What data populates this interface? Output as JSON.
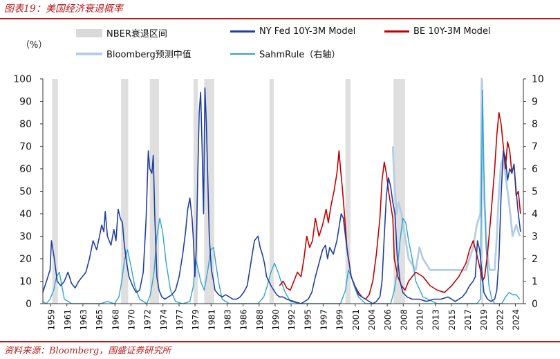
{
  "header": {
    "title": "图表19：美国经济衰退概率"
  },
  "footer": {
    "source": "资料来源：Bloomberg，国盛证券研究所"
  },
  "chart_data": {
    "type": "line",
    "unit_label": "（%）",
    "legend_position": "top",
    "grid": false,
    "x_tick_labels": [
      "1959",
      "1961",
      "1963",
      "1965",
      "1968",
      "1970",
      "1972",
      "1974",
      "1977",
      "1979",
      "1981",
      "1983",
      "1986",
      "1988",
      "1990",
      "1992",
      "1995",
      "1997",
      "1999",
      "2001",
      "2004",
      "2006",
      "2008",
      "2010",
      "2013",
      "2015",
      "2017",
      "2019",
      "2022",
      "2024"
    ],
    "xlim": [
      1959.0,
      2026.0
    ],
    "ylim_left": [
      0,
      100
    ],
    "yticks_left": [
      "0",
      "10",
      "20",
      "30",
      "40",
      "50",
      "60",
      "70",
      "80",
      "90",
      "100"
    ],
    "ylim_right": [
      0,
      10
    ],
    "yticks_right": [
      "0",
      "1",
      "2",
      "3",
      "4",
      "5",
      "6",
      "7",
      "8",
      "9",
      "10"
    ],
    "recessions": [
      [
        1960.3,
        1961.1
      ],
      [
        1969.9,
        1970.9
      ],
      [
        1973.9,
        1975.2
      ],
      [
        1980.0,
        1980.6
      ],
      [
        1981.5,
        1982.9
      ],
      [
        1990.6,
        1991.2
      ],
      [
        2001.2,
        2001.9
      ],
      [
        2007.9,
        2009.5
      ],
      [
        2020.1,
        2020.4
      ]
    ],
    "colors": {
      "recession": "#d9d9d9",
      "ny_fed": "#1f3fa0",
      "be": "#c00000",
      "bloomberg": "#b4cde6",
      "sahm": "#2ea3cf",
      "accent": "#b71c1c"
    },
    "series": [
      {
        "name": "NBER衰退区间",
        "axis": "left",
        "style": "band"
      },
      {
        "name": "NY Fed 10Y-3M Model",
        "axis": "left",
        "x": [
          1959.0,
          1959.5,
          1960.0,
          1960.2,
          1960.6,
          1961.0,
          1961.5,
          1962.0,
          1962.5,
          1963.0,
          1963.5,
          1964.0,
          1964.5,
          1965.0,
          1965.5,
          1966.0,
          1966.5,
          1966.9,
          1967.2,
          1967.5,
          1967.7,
          1968.0,
          1968.5,
          1968.9,
          1969.2,
          1969.5,
          1969.8,
          1970.1,
          1970.3,
          1970.6,
          1971.0,
          1971.5,
          1972.0,
          1972.5,
          1973.0,
          1973.4,
          1973.7,
          1973.9,
          1974.2,
          1974.4,
          1974.6,
          1974.9,
          1975.2,
          1975.6,
          1976.0,
          1976.5,
          1977.0,
          1977.5,
          1978.0,
          1978.5,
          1978.9,
          1979.2,
          1979.5,
          1979.8,
          1980.0,
          1980.2,
          1980.4,
          1980.6,
          1980.8,
          1981.0,
          1981.2,
          1981.4,
          1981.6,
          1981.8,
          1982.0,
          1982.2,
          1982.5,
          1982.8,
          1983.0,
          1983.5,
          1984.0,
          1984.5,
          1985.0,
          1985.5,
          1986.0,
          1986.5,
          1987.0,
          1987.5,
          1988.0,
          1988.5,
          1989.0,
          1989.3,
          1989.6,
          1989.9,
          1990.2,
          1990.5,
          1990.8,
          1991.2,
          1991.6,
          1992.0,
          1992.5,
          1993.0,
          1994.0,
          1995.0,
          1995.5,
          1996.0,
          1996.5,
          1997.0,
          1997.5,
          1998.0,
          1998.4,
          1998.7,
          1999.0,
          1999.5,
          2000.0,
          2000.3,
          2000.6,
          2000.9,
          2001.2,
          2001.5,
          2002.0,
          2002.5,
          2003.0,
          2004.0,
          2005.0,
          2005.5,
          2006.0,
          2006.3,
          2006.6,
          2006.9,
          2007.2,
          2007.5,
          2007.8,
          2008.1,
          2008.4,
          2008.8,
          2009.2,
          2009.8,
          2010.5,
          2011.5,
          2012.5,
          2013.5,
          2014.5,
          2015.5,
          2016.5,
          2017.0,
          2017.5,
          2018.0,
          2018.5,
          2019.0,
          2019.3,
          2019.6,
          2019.9,
          2020.2,
          2020.5,
          2021.0,
          2021.5,
          2022.0,
          2022.3,
          2022.6,
          2022.9,
          2023.2,
          2023.5,
          2023.8,
          2024.1,
          2024.4,
          2024.7,
          2025.0,
          2025.3,
          2025.6
        ],
        "values": [
          5,
          10,
          15,
          28,
          20,
          10,
          8,
          10,
          14,
          9,
          7,
          10,
          12,
          14,
          20,
          28,
          24,
          30,
          35,
          32,
          41,
          30,
          26,
          33,
          28,
          42,
          38,
          36,
          28,
          20,
          12,
          8,
          5,
          6,
          14,
          38,
          68,
          60,
          58,
          66,
          40,
          12,
          6,
          3,
          2,
          3,
          4,
          6,
          12,
          22,
          32,
          42,
          47,
          38,
          28,
          12,
          25,
          58,
          85,
          94,
          70,
          40,
          96,
          80,
          55,
          30,
          15,
          10,
          6,
          4,
          3,
          4,
          3,
          2,
          2,
          3,
          5,
          8,
          18,
          28,
          30,
          25,
          22,
          18,
          12,
          10,
          8,
          6,
          4,
          3,
          3,
          2,
          1,
          0,
          1,
          2,
          5,
          12,
          18,
          24,
          26,
          20,
          25,
          22,
          28,
          34,
          40,
          38,
          30,
          22,
          12,
          8,
          4,
          2,
          0,
          1,
          3,
          10,
          30,
          48,
          56,
          52,
          45,
          40,
          22,
          10,
          5,
          3,
          2,
          2,
          1,
          2,
          2,
          3,
          1,
          2,
          3,
          5,
          8,
          10,
          12,
          28,
          24,
          15,
          5,
          2,
          1,
          2,
          6,
          20,
          48,
          68,
          65,
          55,
          60,
          58,
          62,
          50,
          40,
          32
        ]
      },
      {
        "name": "BE 10Y-3M Model",
        "axis": "left",
        "x": [
          1992.0,
          1992.5,
          1993.0,
          1993.5,
          1994.0,
          1994.5,
          1995.0,
          1995.4,
          1995.8,
          1996.2,
          1996.6,
          1997.0,
          1997.5,
          1998.0,
          1998.5,
          1998.8,
          1999.2,
          1999.6,
          2000.0,
          2000.3,
          2000.5,
          2000.8,
          2001.1,
          2001.4,
          2002.0,
          2002.5,
          2003.0,
          2003.5,
          2004.0,
          2004.5,
          2005.0,
          2005.5,
          2006.0,
          2006.3,
          2006.6,
          2006.9,
          2007.2,
          2007.5,
          2007.8,
          2008.0,
          2008.5,
          2009.0,
          2009.5,
          2010.0,
          2011.0,
          2012.0,
          2013.0,
          2014.0,
          2015.0,
          2016.0,
          2017.0,
          2017.5,
          2018.0,
          2018.5,
          2019.0,
          2019.5,
          2020.0,
          2020.3,
          2020.6,
          2021.0,
          2021.5,
          2022.0,
          2022.3,
          2022.6,
          2022.9,
          2023.2,
          2023.5,
          2023.8,
          2024.1,
          2024.4,
          2024.7,
          2025.0,
          2025.3,
          2025.6
        ],
        "values": [
          8,
          10,
          7,
          6,
          10,
          14,
          12,
          20,
          30,
          25,
          28,
          38,
          30,
          35,
          42,
          36,
          44,
          50,
          58,
          68,
          60,
          50,
          38,
          25,
          12,
          8,
          5,
          3,
          2,
          4,
          10,
          22,
          38,
          55,
          63,
          58,
          50,
          44,
          38,
          20,
          12,
          8,
          6,
          10,
          14,
          12,
          8,
          6,
          5,
          8,
          12,
          15,
          18,
          24,
          28,
          22,
          15,
          10,
          12,
          22,
          40,
          60,
          75,
          85,
          80,
          70,
          60,
          72,
          68,
          58,
          62,
          48,
          50,
          40
        ]
      },
      {
        "name": "Bloomberg预测中值",
        "axis": "left",
        "x": [
          2007.8,
          2008.0,
          2008.3,
          2008.6,
          2009.0,
          2009.5,
          2010.0,
          2011.0,
          2011.5,
          2012.0,
          2013.0,
          2014.0,
          2015.0,
          2016.0,
          2017.0,
          2018.0,
          2019.0,
          2019.5,
          2020.0,
          2020.2,
          2020.5,
          2020.9,
          2021.3,
          2022.0,
          2022.3,
          2022.6,
          2022.9,
          2023.2,
          2023.6,
          2024.0,
          2024.5,
          2025.0,
          2025.5
        ],
        "values": [
          70,
          55,
          40,
          45,
          40,
          30,
          20,
          15,
          25,
          20,
          15,
          15,
          15,
          15,
          15,
          15,
          25,
          35,
          40,
          100,
          50,
          25,
          15,
          15,
          30,
          50,
          62,
          65,
          55,
          45,
          30,
          35,
          30
        ]
      },
      {
        "name": "SahmRule（右轴）",
        "axis": "right",
        "x": [
          1959.0,
          1959.5,
          1960.0,
          1960.5,
          1960.9,
          1961.3,
          1961.7,
          1962.0,
          1963.0,
          1964.0,
          1965.0,
          1966.0,
          1967.0,
          1968.0,
          1969.0,
          1969.6,
          1970.0,
          1970.4,
          1970.8,
          1971.2,
          1971.8,
          1972.5,
          1973.5,
          1974.0,
          1974.5,
          1974.9,
          1975.3,
          1975.7,
          1976.2,
          1976.8,
          1977.5,
          1978.5,
          1979.5,
          1980.0,
          1980.3,
          1980.6,
          1981.0,
          1981.5,
          1982.0,
          1982.4,
          1982.8,
          1983.2,
          1983.6,
          1984.0,
          1985.0,
          1986.0,
          1987.0,
          1988.0,
          1989.0,
          1989.8,
          1990.3,
          1990.8,
          1991.3,
          1991.8,
          1992.2,
          1992.8,
          1993.5,
          1995.0,
          1997.0,
          1999.0,
          2000.5,
          2001.2,
          2001.6,
          2002.0,
          2002.5,
          2003.0,
          2004.0,
          2006.0,
          2007.5,
          2008.0,
          2008.4,
          2008.8,
          2009.2,
          2009.6,
          2010.0,
          2010.5,
          2011.0,
          2012.0,
          2014.0,
          2016.0,
          2018.0,
          2019.5,
          2020.0,
          2020.3,
          2020.5,
          2020.8,
          2021.2,
          2021.6,
          2022.0,
          2023.0,
          2023.5,
          2024.0,
          2024.5,
          2025.0,
          2025.5
        ],
        "values": [
          0.1,
          0,
          0.2,
          0.6,
          1.2,
          1.4,
          0.7,
          0.2,
          0,
          0,
          0,
          0,
          0,
          0.1,
          0,
          0.3,
          1.0,
          2.0,
          2.4,
          1.8,
          0.8,
          0.2,
          0,
          0.4,
          1.4,
          3.0,
          3.8,
          3.2,
          1.8,
          0.6,
          0.1,
          0,
          0.1,
          0.8,
          2.0,
          1.6,
          1.0,
          0.6,
          1.5,
          2.4,
          2.5,
          1.6,
          0.8,
          0.2,
          0,
          0,
          0,
          0,
          0,
          0.3,
          0.8,
          1.4,
          1.8,
          1.4,
          1.0,
          0.5,
          0.1,
          0,
          0,
          0,
          0,
          0.6,
          1.5,
          1.2,
          0.7,
          0.3,
          0,
          0,
          0,
          0.6,
          1.4,
          2.8,
          3.8,
          3.6,
          2.8,
          2.0,
          1.0,
          0.3,
          0,
          0,
          0,
          0,
          0.2,
          9.5,
          6.0,
          2.5,
          0.8,
          0.2,
          0,
          0,
          0.3,
          0.5,
          0.4,
          0.4,
          0.2
        ]
      }
    ]
  }
}
